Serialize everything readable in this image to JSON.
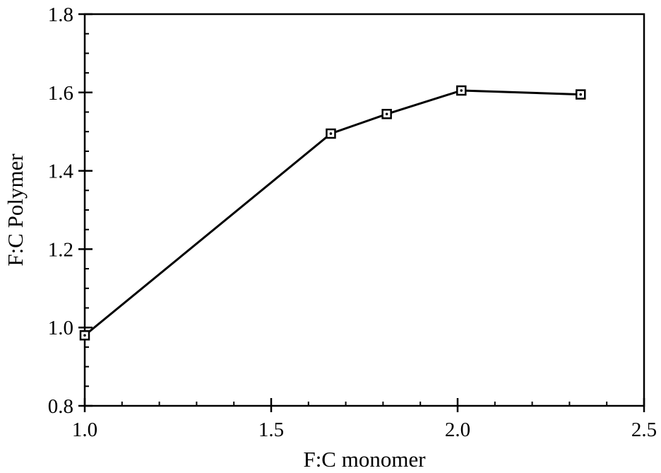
{
  "chart_data": {
    "type": "line",
    "title": "",
    "xlabel": "F:C monomer",
    "ylabel": "F:C Polymer",
    "xlim": [
      1.0,
      2.5
    ],
    "ylim": [
      0.8,
      1.8
    ],
    "x_ticks": [
      "1.0",
      "1.5",
      "2.0",
      "2.5"
    ],
    "y_ticks": [
      "0.8",
      "1.0",
      "1.2",
      "1.4",
      "1.6",
      "1.8"
    ],
    "grid": false,
    "legend": "none",
    "marker": "square-with-dot",
    "color": "#000000",
    "series": [
      {
        "x": [
          1.0,
          1.66,
          1.81,
          2.01,
          2.33
        ],
        "y": [
          0.98,
          1.495,
          1.545,
          1.605,
          1.595
        ]
      }
    ]
  }
}
